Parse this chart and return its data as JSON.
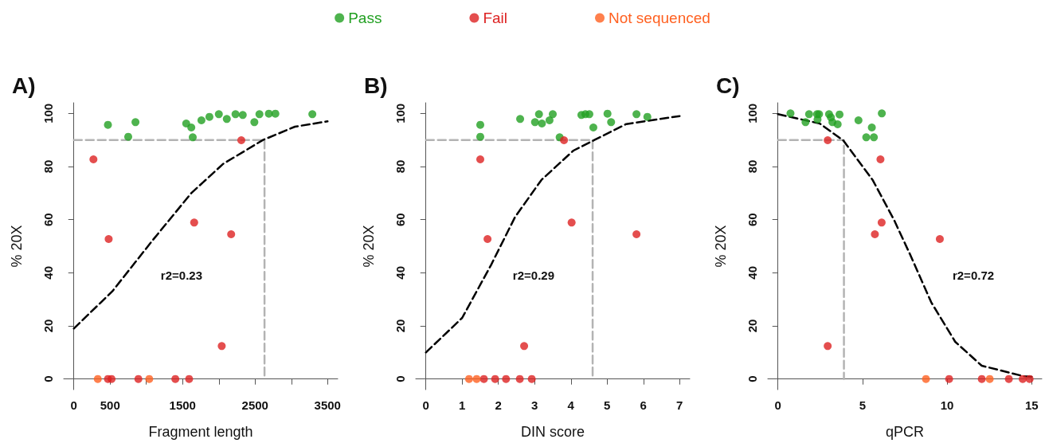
{
  "chart_data": [
    {
      "type": "scatter",
      "title": "A)",
      "xlabel": "Fragment length",
      "ylabel": "% 20X",
      "legend": "top",
      "marker": "circle",
      "grid": false,
      "xlim": [
        -140,
        3640
      ],
      "xticks": [
        0,
        500,
        {
          "value": 1000,
          "label": null
        },
        1500,
        {
          "value": 2000,
          "label": null
        },
        2500,
        {
          "value": 3000,
          "label": null
        },
        3500
      ],
      "ylim": [
        -4,
        104
      ],
      "yticks": [
        0,
        20,
        40,
        60,
        80,
        100
      ],
      "annotations": [
        "r2=0.23"
      ],
      "series": [
        {
          "type": "line",
          "color": "#b3b3b3",
          "line_style": "dashed",
          "marker": "none",
          "x": [
            0,
            2630,
            2630
          ],
          "values": [
            90,
            90,
            0
          ]
        },
        {
          "type": "line",
          "color": "#000000",
          "line_style": "dashed",
          "marker": "none",
          "x": [
            0,
            530,
            1080,
            1620,
            2060,
            2610,
            3050,
            3500
          ],
          "values": [
            19,
            33,
            52,
            70,
            81,
            90,
            95,
            97
          ]
        },
        {
          "name": "Pass",
          "color": "#22a022",
          "x": [
            470,
            850,
            750,
            1550,
            1620,
            1640,
            1760,
            1870,
            2000,
            2110,
            2230,
            2330,
            2490,
            2560,
            2690,
            2780,
            3290
          ],
          "values": [
            95.7,
            96.7,
            91.2,
            96.2,
            94.7,
            91,
            97.4,
            98.7,
            99.7,
            97.9,
            99.7,
            99.4,
            96.7,
            99.7,
            99.9,
            99.9,
            99.7
          ]
        },
        {
          "name": "Fail",
          "color": "#dd2222",
          "x": [
            270,
            480,
            1660,
            2170,
            2310,
            2040,
            470,
            520,
            890,
            1400,
            1590
          ],
          "values": [
            82.7,
            52.7,
            58.9,
            54.5,
            89.9,
            12.4,
            0,
            0,
            0,
            0,
            0
          ]
        },
        {
          "name": "Not sequenced",
          "color": "#ff6020",
          "x": [
            330,
            1040
          ],
          "values": [
            0,
            0
          ]
        }
      ]
    },
    {
      "type": "scatter",
      "title": "B)",
      "xlabel": "DIN score",
      "ylabel": "% 20X",
      "legend": "top",
      "marker": "circle",
      "grid": false,
      "xlim": [
        -0.28,
        7.28
      ],
      "xticks": [
        0,
        1,
        2,
        3,
        4,
        5,
        6,
        7
      ],
      "ylim": [
        -4,
        104
      ],
      "yticks": [
        0,
        20,
        40,
        60,
        80,
        100
      ],
      "annotations": [
        "r2=0.29"
      ],
      "series": [
        {
          "type": "line",
          "color": "#b3b3b3",
          "line_style": "dashed",
          "marker": "none",
          "x": [
            0,
            4.6,
            4.6
          ],
          "values": [
            90,
            90,
            0
          ]
        },
        {
          "type": "line",
          "color": "#000000",
          "line_style": "dashed",
          "marker": "none",
          "x": [
            0,
            1,
            1.8,
            2.46,
            3.19,
            4.07,
            4.65,
            5.53,
            7
          ],
          "values": [
            10,
            23,
            43,
            61,
            75,
            86,
            90,
            96,
            99
          ]
        },
        {
          "name": "Pass",
          "color": "#22a022",
          "x": [
            1.5,
            1.5,
            2.6,
            3.12,
            3.01,
            3.2,
            3.41,
            3.5,
            4.29,
            4.4,
            4.51,
            4.62,
            5.01,
            5.11,
            5.81,
            6.11,
            3.69
          ],
          "values": [
            95.7,
            91.2,
            97.9,
            99.7,
            96.7,
            96.2,
            97.4,
            99.7,
            99.4,
            99.7,
            99.7,
            94.7,
            99.9,
            96.7,
            99.7,
            98.7,
            91
          ]
        },
        {
          "name": "Fail",
          "color": "#dd2222",
          "x": [
            1.5,
            1.7,
            4.02,
            5.81,
            3.81,
            2.71,
            1.6,
            1.91,
            2.21,
            2.59,
            2.92
          ],
          "values": [
            82.7,
            52.7,
            58.9,
            54.5,
            89.9,
            12.4,
            0,
            0,
            0,
            0,
            0
          ]
        },
        {
          "name": "Not sequenced",
          "color": "#ff6020",
          "x": [
            1.19,
            1.4
          ],
          "values": [
            0,
            0
          ]
        }
      ]
    },
    {
      "type": "scatter",
      "title": "C)",
      "xlabel": "qPCR",
      "ylabel": "% 20X",
      "legend": "top",
      "marker": "circle",
      "grid": false,
      "xlim": [
        -0.6,
        15.6
      ],
      "xticks": [
        0,
        5,
        10,
        15
      ],
      "ylim": [
        -4,
        104
      ],
      "yticks": [
        0,
        20,
        40,
        60,
        80,
        100
      ],
      "annotations": [
        "r2=0.72"
      ],
      "series": [
        {
          "type": "line",
          "color": "#b3b3b3",
          "line_style": "dashed",
          "marker": "none",
          "x": [
            0,
            3.9,
            3.9
          ],
          "values": [
            90,
            90,
            0
          ]
        },
        {
          "type": "line",
          "color": "#000000",
          "line_style": "dashed",
          "marker": "none",
          "x": [
            0,
            2.47,
            3.88,
            5.61,
            6.87,
            7.81,
            9.06,
            10.48,
            12.05,
            14.56,
            15
          ],
          "values": [
            99.7,
            96.2,
            89.7,
            74.8,
            59.8,
            46.9,
            28.9,
            14,
            5,
            1,
            0.8
          ]
        },
        {
          "name": "Pass",
          "color": "#22a022",
          "x": [
            0.74,
            1.84,
            1.63,
            2.31,
            2.43,
            2.34,
            3.02,
            3.13,
            3.22,
            3.53,
            3.64,
            4.76,
            5.55,
            5.22,
            5.67,
            6.14
          ],
          "values": [
            100,
            99.7,
            96.7,
            99.7,
            99.7,
            97.7,
            99.7,
            98.5,
            96.7,
            95.9,
            99.6,
            97.4,
            94.7,
            91,
            91,
            100
          ]
        },
        {
          "name": "Fail",
          "color": "#dd2222",
          "x": [
            2.94,
            6.06,
            6.13,
            5.73,
            9.57,
            2.94,
            10.12,
            12.05,
            13.65,
            14.47,
            14.88
          ],
          "values": [
            89.9,
            82.7,
            58.9,
            54.5,
            52.7,
            12.4,
            0,
            0,
            0,
            0,
            0
          ]
        },
        {
          "name": "Not sequenced",
          "color": "#ff6020",
          "x": [
            8.75,
            12.52
          ],
          "values": [
            0,
            0
          ]
        }
      ]
    }
  ]
}
